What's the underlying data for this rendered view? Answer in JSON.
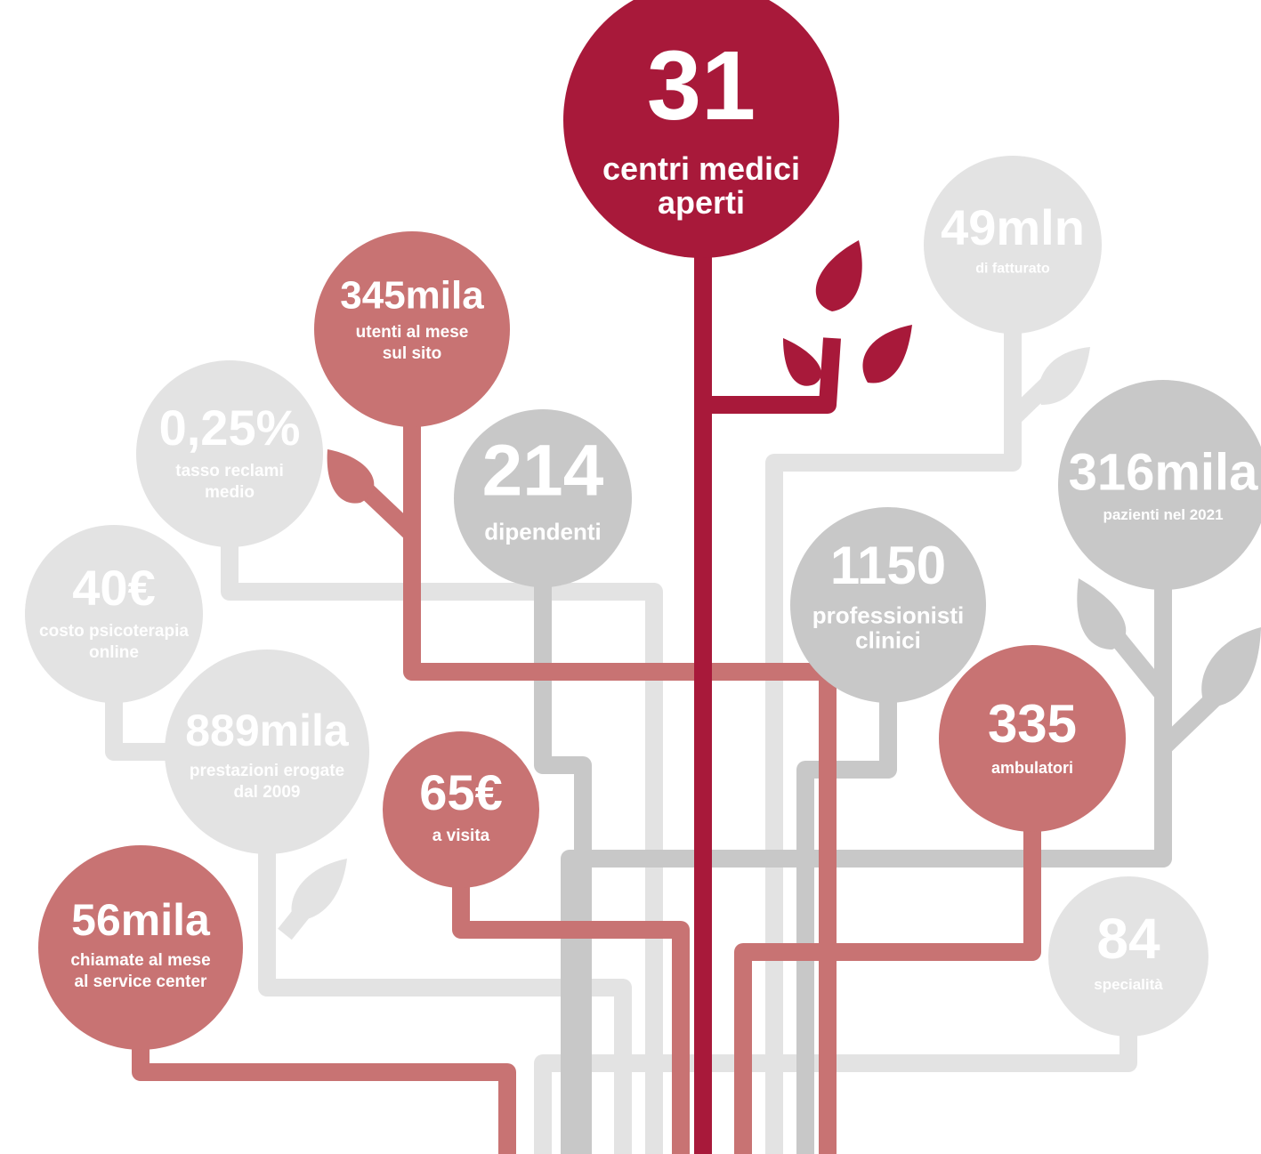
{
  "nodes": [
    {
      "value": "31",
      "label": [
        "centri medici",
        "aperti"
      ]
    },
    {
      "value": "345mila",
      "label": [
        "utenti al mese",
        "sul sito"
      ]
    },
    {
      "value": "0,25%",
      "label": [
        "tasso reclami",
        "medio"
      ]
    },
    {
      "value": "214",
      "label": [
        "dipendenti"
      ]
    },
    {
      "value": "40€",
      "label": [
        "costo psicoterapia",
        "online"
      ]
    },
    {
      "value": "889mila",
      "label": [
        "prestazioni erogate",
        "dal 2009"
      ]
    },
    {
      "value": "65€",
      "label": [
        "a visita"
      ]
    },
    {
      "value": "56mila",
      "label": [
        "chiamate al mese",
        "al service center"
      ]
    },
    {
      "value": "49mln",
      "label": [
        "di fatturato"
      ]
    },
    {
      "value": "316mila",
      "label": [
        "pazienti nel 2021"
      ]
    },
    {
      "value": "1150",
      "label": [
        "professionisti",
        "clinici"
      ]
    },
    {
      "value": "335",
      "label": [
        "ambulatori"
      ]
    },
    {
      "value": "84",
      "label": [
        "specialità"
      ]
    }
  ]
}
